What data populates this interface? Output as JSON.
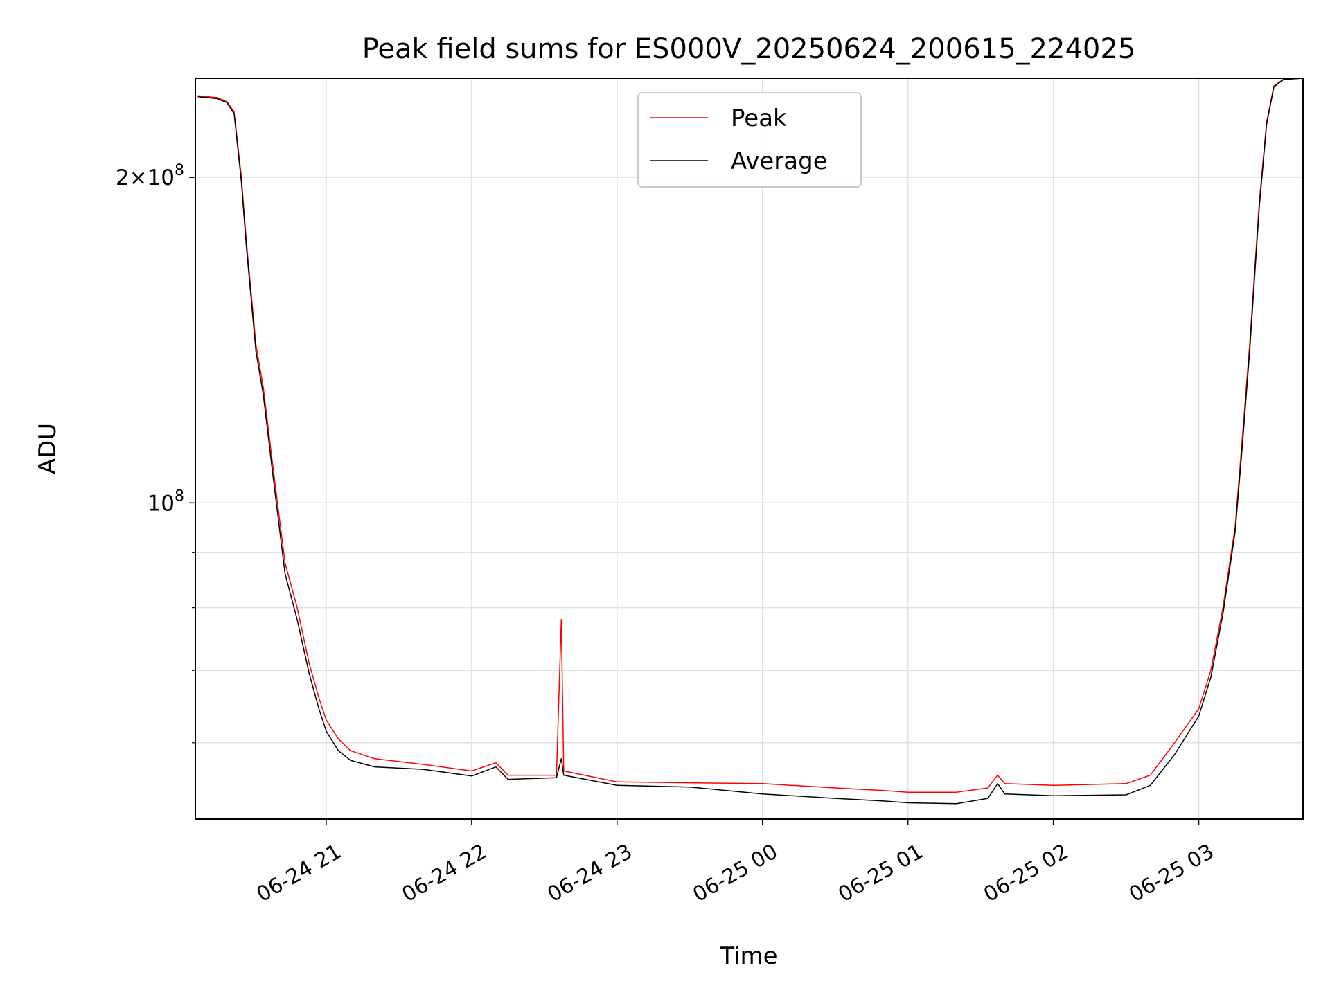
{
  "chart_data": {
    "type": "line",
    "title": "Peak field sums for ES000V_20250624_200615_224025",
    "xlabel": "Time",
    "ylabel": "ADU",
    "y_scale": "log",
    "ylim": [
      51000000,
      247000000
    ],
    "xlim": [
      "2025-06-24 20:06",
      "2025-06-25 03:43"
    ],
    "x_tick_labels": [
      "06-24 21",
      "06-24 22",
      "06-24 23",
      "06-25 00",
      "06-25 01",
      "06-25 02",
      "06-25 03"
    ],
    "x_ticks": [
      "2025-06-24 21:00",
      "2025-06-24 22:00",
      "2025-06-24 23:00",
      "2025-06-25 00:00",
      "2025-06-25 01:00",
      "2025-06-25 02:00",
      "2025-06-25 03:00"
    ],
    "y_tick_labels": [
      {
        "value": 200000000,
        "mantissa": "2",
        "exponent": "8"
      },
      {
        "value": 100000000,
        "mantissa": "",
        "exponent": "8"
      }
    ],
    "y_minor_ticks": [
      60000000,
      70000000,
      80000000,
      90000000
    ],
    "grid": true,
    "legend": {
      "position": "upper-center",
      "entries": [
        "Peak",
        "Average"
      ]
    },
    "series": [
      {
        "name": "Peak",
        "color": "#ff0000",
        "points": [
          [
            "2025-06-24 20:07",
            238000000
          ],
          [
            "2025-06-24 20:15",
            237000000
          ],
          [
            "2025-06-24 20:19",
            235000000
          ],
          [
            "2025-06-24 20:22",
            230000000
          ],
          [
            "2025-06-24 20:25",
            200000000
          ],
          [
            "2025-06-24 20:27",
            175000000
          ],
          [
            "2025-06-24 20:31",
            140000000
          ],
          [
            "2025-06-24 20:34",
            128000000
          ],
          [
            "2025-06-24 20:38",
            108000000
          ],
          [
            "2025-06-24 20:43",
            88000000
          ],
          [
            "2025-06-24 20:48",
            80000000
          ],
          [
            "2025-06-24 20:53",
            71000000
          ],
          [
            "2025-06-24 20:57",
            66000000
          ],
          [
            "2025-06-24 21:00",
            63000000
          ],
          [
            "2025-06-24 21:05",
            60500000
          ],
          [
            "2025-06-24 21:10",
            59000000
          ],
          [
            "2025-06-24 21:20",
            58000000
          ],
          [
            "2025-06-24 21:40",
            57300000
          ],
          [
            "2025-06-24 22:00",
            56500000
          ],
          [
            "2025-06-24 22:10",
            57500000
          ],
          [
            "2025-06-24 22:15",
            56000000
          ],
          [
            "2025-06-24 22:35",
            56000000
          ],
          [
            "2025-06-24 22:37",
            78000000
          ],
          [
            "2025-06-24 22:38",
            56500000
          ],
          [
            "2025-06-24 23:00",
            55200000
          ],
          [
            "2025-06-24 23:30",
            55100000
          ],
          [
            "2025-06-25 00:00",
            55000000
          ],
          [
            "2025-06-25 00:30",
            54500000
          ],
          [
            "2025-06-25 00:50",
            54200000
          ],
          [
            "2025-06-25 01:00",
            54000000
          ],
          [
            "2025-06-25 01:20",
            54000000
          ],
          [
            "2025-06-25 01:33",
            54500000
          ],
          [
            "2025-06-25 01:37",
            56000000
          ],
          [
            "2025-06-25 01:40",
            55000000
          ],
          [
            "2025-06-25 02:00",
            54800000
          ],
          [
            "2025-06-25 02:30",
            55000000
          ],
          [
            "2025-06-25 02:40",
            56000000
          ],
          [
            "2025-06-25 02:50",
            60000000
          ],
          [
            "2025-06-25 03:00",
            64500000
          ],
          [
            "2025-06-25 03:05",
            70000000
          ],
          [
            "2025-06-25 03:10",
            80000000
          ],
          [
            "2025-06-25 03:15",
            95000000
          ],
          [
            "2025-06-25 03:18",
            115000000
          ],
          [
            "2025-06-25 03:21",
            140000000
          ],
          [
            "2025-06-25 03:25",
            190000000
          ],
          [
            "2025-06-25 03:28",
            225000000
          ],
          [
            "2025-06-25 03:31",
            243000000
          ],
          [
            "2025-06-25 03:35",
            246500000
          ],
          [
            "2025-06-25 03:43",
            247000000
          ]
        ]
      },
      {
        "name": "Average",
        "color": "#000000",
        "points": [
          [
            "2025-06-24 20:07",
            237500000
          ],
          [
            "2025-06-24 20:15",
            236500000
          ],
          [
            "2025-06-24 20:19",
            234500000
          ],
          [
            "2025-06-24 20:22",
            229000000
          ],
          [
            "2025-06-24 20:25",
            198000000
          ],
          [
            "2025-06-24 20:27",
            173000000
          ],
          [
            "2025-06-24 20:31",
            138000000
          ],
          [
            "2025-06-24 20:34",
            126000000
          ],
          [
            "2025-06-24 20:38",
            106000000
          ],
          [
            "2025-06-24 20:43",
            86000000
          ],
          [
            "2025-06-24 20:48",
            78000000
          ],
          [
            "2025-06-24 20:53",
            69500000
          ],
          [
            "2025-06-24 20:57",
            64500000
          ],
          [
            "2025-06-24 21:00",
            61500000
          ],
          [
            "2025-06-24 21:05",
            59000000
          ],
          [
            "2025-06-24 21:10",
            57800000
          ],
          [
            "2025-06-24 21:20",
            57000000
          ],
          [
            "2025-06-24 21:40",
            56700000
          ],
          [
            "2025-06-24 22:00",
            55900000
          ],
          [
            "2025-06-24 22:10",
            57000000
          ],
          [
            "2025-06-24 22:15",
            55500000
          ],
          [
            "2025-06-24 22:35",
            55700000
          ],
          [
            "2025-06-24 22:37",
            58000000
          ],
          [
            "2025-06-24 22:38",
            56000000
          ],
          [
            "2025-06-24 23:00",
            54800000
          ],
          [
            "2025-06-24 23:30",
            54600000
          ],
          [
            "2025-06-25 00:00",
            53800000
          ],
          [
            "2025-06-25 00:30",
            53300000
          ],
          [
            "2025-06-25 00:50",
            53000000
          ],
          [
            "2025-06-25 01:00",
            52800000
          ],
          [
            "2025-06-25 01:20",
            52700000
          ],
          [
            "2025-06-25 01:33",
            53300000
          ],
          [
            "2025-06-25 01:37",
            55000000
          ],
          [
            "2025-06-25 01:40",
            53800000
          ],
          [
            "2025-06-25 02:00",
            53600000
          ],
          [
            "2025-06-25 02:30",
            53700000
          ],
          [
            "2025-06-25 02:40",
            54800000
          ],
          [
            "2025-06-25 02:50",
            58500000
          ],
          [
            "2025-06-25 03:00",
            63500000
          ],
          [
            "2025-06-25 03:05",
            69000000
          ],
          [
            "2025-06-25 03:10",
            79000000
          ],
          [
            "2025-06-25 03:15",
            94000000
          ],
          [
            "2025-06-25 03:18",
            113000000
          ],
          [
            "2025-06-25 03:21",
            138000000
          ],
          [
            "2025-06-25 03:25",
            188000000
          ],
          [
            "2025-06-25 03:28",
            224000000
          ],
          [
            "2025-06-25 03:31",
            242500000
          ],
          [
            "2025-06-25 03:35",
            246300000
          ],
          [
            "2025-06-25 03:43",
            247000000
          ]
        ]
      }
    ]
  }
}
